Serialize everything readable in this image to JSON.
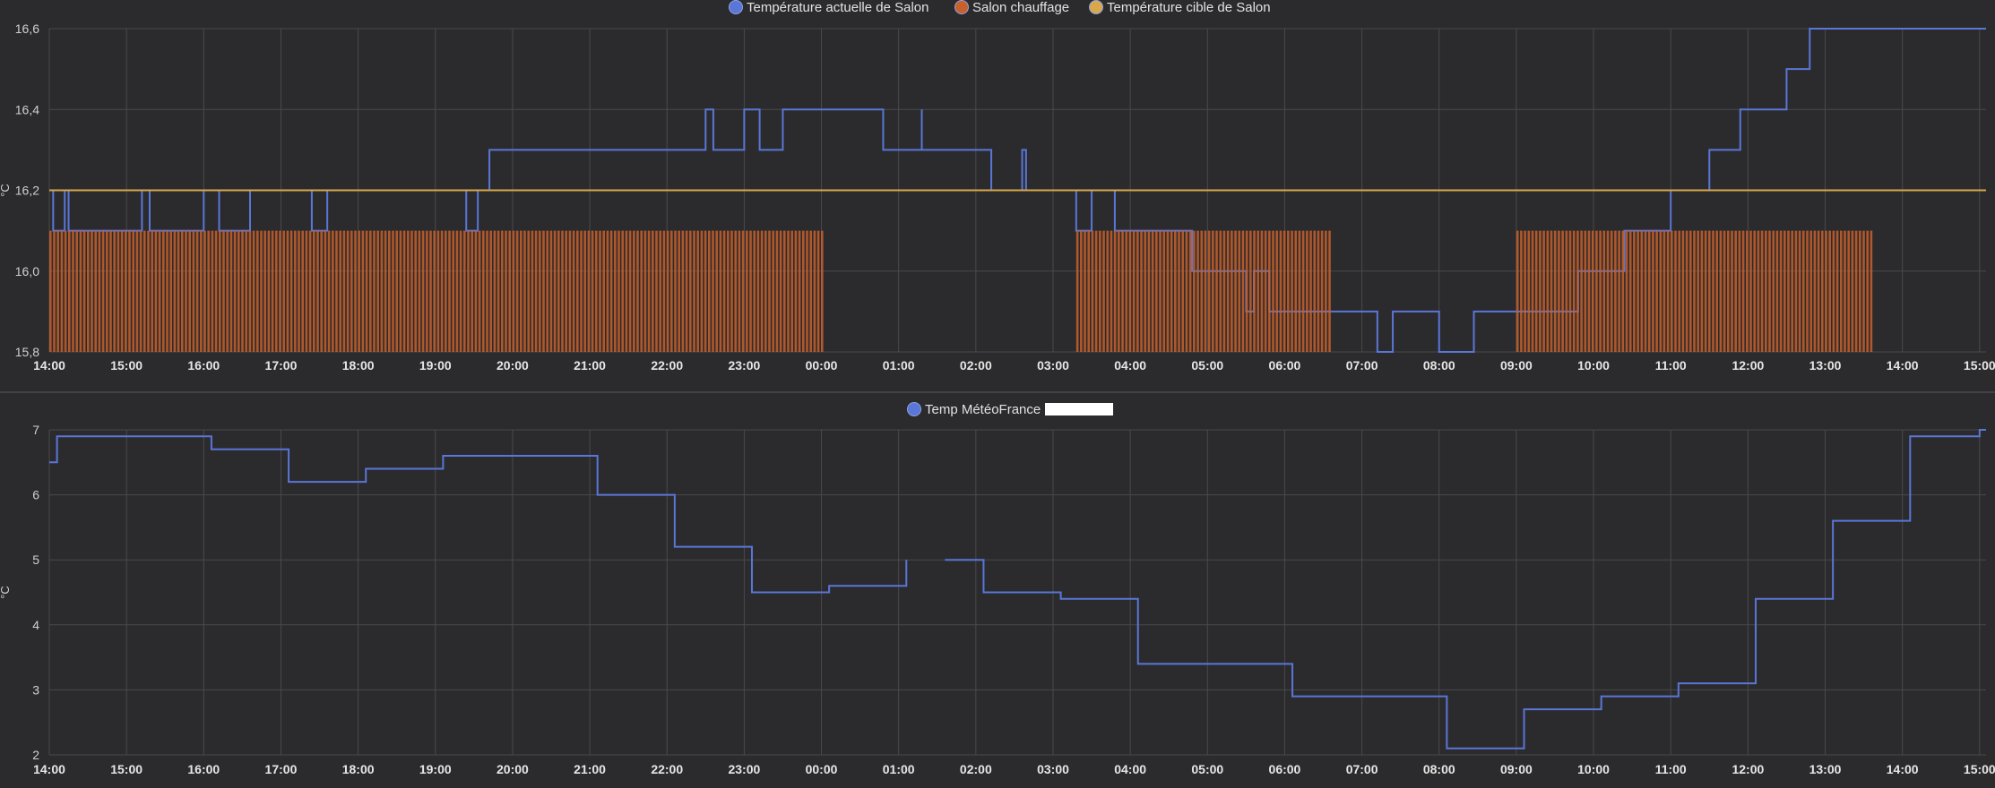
{
  "colors": {
    "background": "#2b2b2d",
    "grid": "#4a4a4c",
    "divider": "#5a5a5c",
    "temperature_line": "#5a76d6",
    "heating_fill": "#c8602c",
    "target_line": "#d8a84a",
    "redaction": "#ffffff"
  },
  "chart_data": [
    {
      "id": "salon",
      "type": "line",
      "step": true,
      "ylabel": "°C",
      "ylim": [
        15.8,
        16.6
      ],
      "yticks": [
        "15,8",
        "16,0",
        "16,2",
        "16,4",
        "16,6"
      ],
      "ytick_values": [
        15.8,
        16.0,
        16.2,
        16.4,
        16.6
      ],
      "x_range": [
        "14:00",
        "15:05"
      ],
      "x_day_span_hours": 25.08,
      "xticks": [
        "14:00",
        "15:00",
        "16:00",
        "17:00",
        "18:00",
        "19:00",
        "20:00",
        "21:00",
        "22:00",
        "23:00",
        "00:00",
        "01:00",
        "02:00",
        "03:00",
        "04:00",
        "05:00",
        "06:00",
        "07:00",
        "08:00",
        "09:00",
        "10:00",
        "11:00",
        "12:00",
        "13:00",
        "14:00",
        "15:00"
      ],
      "grid": true,
      "legend_position": "top-center",
      "series": [
        {
          "name": "Température actuelle de Salon",
          "color": "#5a76d6",
          "points_hours_since_start": [
            [
              0,
              16.2
            ],
            [
              0.05,
              16.1
            ],
            [
              0.2,
              16.2
            ],
            [
              0.25,
              16.1
            ],
            [
              1.2,
              16.2
            ],
            [
              1.3,
              16.1
            ],
            [
              2.0,
              16.2
            ],
            [
              2.2,
              16.1
            ],
            [
              2.6,
              16.2
            ],
            [
              3.4,
              16.1
            ],
            [
              3.6,
              16.2
            ],
            [
              5.4,
              16.1
            ],
            [
              5.55,
              16.2
            ],
            [
              5.7,
              16.3
            ],
            [
              8.5,
              16.4
            ],
            [
              8.6,
              16.3
            ],
            [
              9.0,
              16.4
            ],
            [
              9.2,
              16.3
            ],
            [
              9.5,
              16.4
            ],
            [
              10.8,
              16.3
            ],
            [
              11.3,
              16.4
            ],
            [
              11.3,
              16.3
            ],
            [
              12.2,
              16.2
            ],
            [
              12.6,
              16.3
            ],
            [
              12.65,
              16.2
            ],
            [
              13.3,
              16.1
            ],
            [
              13.5,
              16.2
            ],
            [
              13.8,
              16.1
            ],
            [
              14.8,
              16.0
            ],
            [
              15.5,
              15.9
            ],
            [
              15.6,
              16.0
            ],
            [
              15.8,
              15.9
            ],
            [
              17.2,
              15.8
            ],
            [
              17.4,
              15.9
            ],
            [
              18.0,
              15.8
            ],
            [
              18.4,
              15.8
            ],
            [
              18.45,
              15.9
            ],
            [
              19.4,
              15.9
            ],
            [
              19.8,
              16.0
            ],
            [
              20.4,
              16.1
            ],
            [
              20.9,
              16.1
            ],
            [
              21.0,
              16.2
            ],
            [
              21.5,
              16.3
            ],
            [
              21.9,
              16.4
            ],
            [
              22.5,
              16.5
            ],
            [
              22.8,
              16.6
            ],
            [
              23.5,
              16.6
            ],
            [
              25.08,
              16.6
            ]
          ]
        },
        {
          "name": "Salon chauffage",
          "color": "#c8602c",
          "heating_intervals_hours_since_start": [
            [
              0,
              10.0
            ],
            [
              13.3,
              16.6
            ],
            [
              19.0,
              20.9
            ],
            [
              20.9,
              23.6
            ]
          ]
        },
        {
          "name": "Température cible de Salon",
          "color": "#d8a84a",
          "constant_value": 16.2
        }
      ]
    },
    {
      "id": "meteo",
      "type": "line",
      "step": true,
      "ylabel": "°C",
      "ylim": [
        2,
        7
      ],
      "yticks": [
        "2",
        "3",
        "4",
        "5",
        "6",
        "7"
      ],
      "ytick_values": [
        2,
        3,
        4,
        5,
        6,
        7
      ],
      "x_range": [
        "14:00",
        "15:05"
      ],
      "xticks": [
        "14:00",
        "15:00",
        "16:00",
        "17:00",
        "18:00",
        "19:00",
        "20:00",
        "21:00",
        "22:00",
        "23:00",
        "00:00",
        "01:00",
        "02:00",
        "03:00",
        "04:00",
        "05:00",
        "06:00",
        "07:00",
        "08:00",
        "09:00",
        "10:00",
        "11:00",
        "12:00",
        "13:00",
        "14:00",
        "15:00"
      ],
      "grid": true,
      "legend_position": "top-center",
      "series": [
        {
          "name": "Temp MétéoFrance",
          "color": "#5a76d6",
          "points_hours_since_start": [
            [
              0,
              6.5
            ],
            [
              0.1,
              6.9
            ],
            [
              2.1,
              6.7
            ],
            [
              3.1,
              6.2
            ],
            [
              4.1,
              6.4
            ],
            [
              5.1,
              6.6
            ],
            [
              7.1,
              6.0
            ],
            [
              8.1,
              5.2
            ],
            [
              9.1,
              4.5
            ],
            [
              10.1,
              4.6
            ],
            [
              11.1,
              5.0
            ],
            [
              11.35,
              null
            ],
            [
              11.6,
              5.0
            ],
            [
              12.1,
              4.5
            ],
            [
              13.1,
              4.4
            ],
            [
              14.1,
              3.4
            ],
            [
              16.1,
              2.9
            ],
            [
              18.1,
              2.1
            ],
            [
              19.1,
              2.7
            ],
            [
              20.1,
              2.9
            ],
            [
              21.1,
              3.1
            ],
            [
              22.1,
              4.4
            ],
            [
              23.1,
              5.6
            ],
            [
              24.1,
              6.9
            ],
            [
              25.0,
              7.0
            ]
          ]
        }
      ]
    }
  ],
  "legend": {
    "top": [
      "Température actuelle de Salon",
      "Salon chauffage",
      "Température cible de Salon"
    ],
    "bottom": [
      "Temp MétéoFrance"
    ]
  }
}
